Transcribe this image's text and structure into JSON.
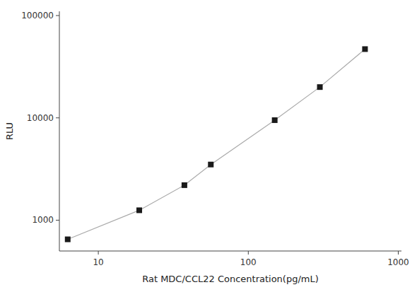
{
  "chart_data": {
    "type": "line",
    "xlabel": "Rat MDC/CCL22 Concentration(pg/mL)",
    "ylabel": "RLU",
    "x": [
      6.25,
      18.75,
      37.5,
      56.25,
      150,
      300,
      600
    ],
    "series": [
      {
        "type": "line",
        "color": "#aaaaaa",
        "values": [
          650,
          1250,
          2200,
          3500,
          9500,
          20000,
          47000
        ]
      },
      {
        "type": "scatter",
        "color": "#1a1a1a",
        "marker": "square",
        "values": [
          650,
          1250,
          2200,
          3500,
          9500,
          20000,
          47000
        ]
      }
    ],
    "xlim": [
      5.5,
      1050
    ],
    "ylim": [
      500,
      110000
    ],
    "xticks": [
      10,
      100,
      1000
    ],
    "yticks": [
      1000,
      10000,
      100000
    ],
    "log": true,
    "grid": false
  }
}
